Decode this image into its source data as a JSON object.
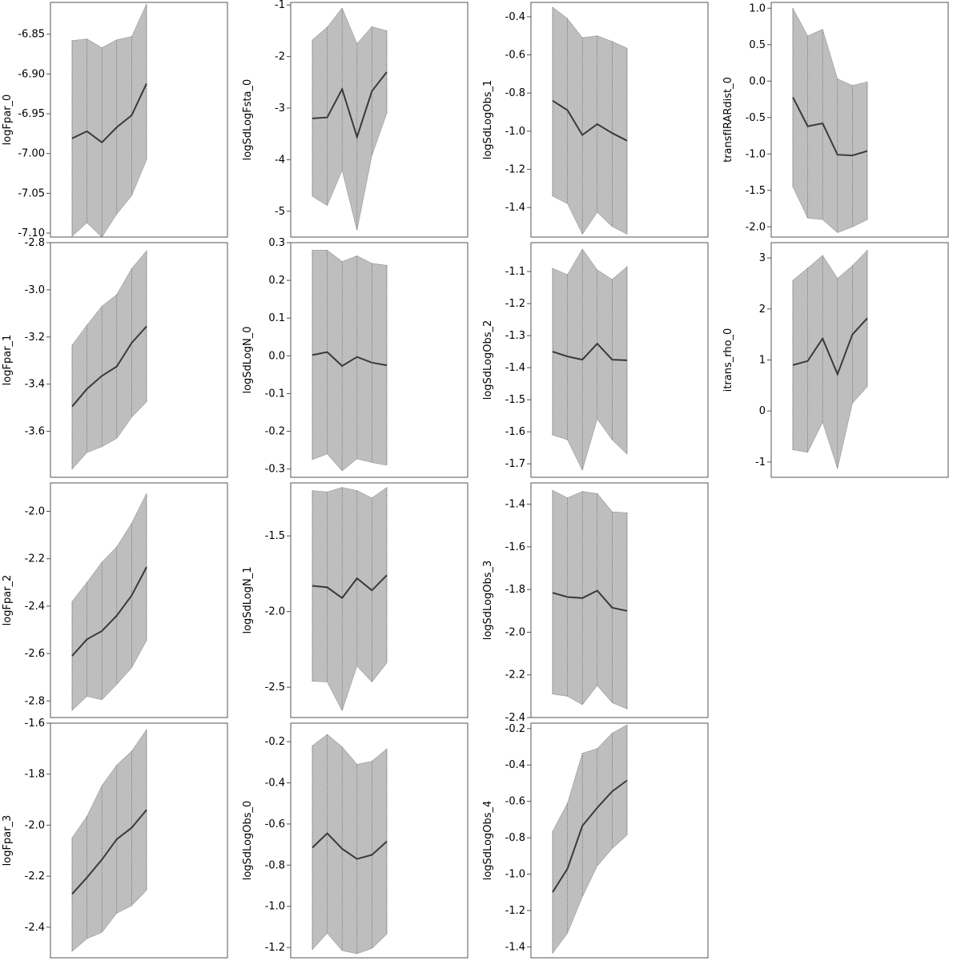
{
  "chart_data": [
    {
      "type": "area",
      "ylabel": "logFpar_0",
      "yticks": [
        -6.85,
        -6.9,
        -6.95,
        -7.0,
        -7.05,
        -7.1
      ],
      "ytick_labels": [
        "-6.85",
        "-6.90",
        "-6.95",
        "-7.00",
        "-7.05",
        "-7.10"
      ],
      "ylim": [
        -7.105,
        -6.81
      ],
      "x": [
        1,
        2,
        3,
        4,
        5,
        6
      ],
      "estimate": [
        -6.981,
        -6.972,
        -6.986,
        -6.967,
        -6.952,
        -6.912
      ],
      "upper": [
        -6.858,
        -6.856,
        -6.867,
        -6.857,
        -6.853,
        -6.812
      ],
      "lower": [
        -7.104,
        -7.087,
        -7.105,
        -7.076,
        -7.053,
        -7.008
      ]
    },
    {
      "type": "area",
      "ylabel": "logSdLogFsta_0",
      "yticks": [
        -1,
        -2,
        -3,
        -4,
        -5
      ],
      "ytick_labels": [
        "-1",
        "-2",
        "-3",
        "-4",
        "-5"
      ],
      "ylim": [
        -5.5,
        -0.95
      ],
      "x": [
        1,
        2,
        3,
        4,
        5,
        6
      ],
      "estimate": [
        -3.2,
        -3.18,
        -2.63,
        -3.56,
        -2.67,
        -2.3
      ],
      "upper": [
        -1.68,
        -1.43,
        -1.06,
        -1.75,
        -1.42,
        -1.5
      ],
      "lower": [
        -4.71,
        -4.89,
        -4.21,
        -5.37,
        -3.92,
        -3.1
      ]
    },
    {
      "type": "area",
      "ylabel": "logSdLogObs_1",
      "yticks": [
        -0.4,
        -0.6,
        -0.8,
        -1.0,
        -1.2,
        -1.4
      ],
      "ytick_labels": [
        "-0.4",
        "-0.6",
        "-0.8",
        "-1.0",
        "-1.2",
        "-1.4"
      ],
      "ylim": [
        -1.555,
        -0.325
      ],
      "x": [
        1,
        2,
        3,
        4,
        5,
        6
      ],
      "estimate": [
        -0.84,
        -0.89,
        -1.02,
        -0.963,
        -1.01,
        -1.05
      ],
      "upper": [
        -0.35,
        -0.41,
        -0.51,
        -0.5,
        -0.53,
        -0.565
      ],
      "lower": [
        -1.34,
        -1.38,
        -1.54,
        -1.425,
        -1.5,
        -1.54
      ]
    },
    {
      "type": "area",
      "ylabel": "transfIRARdist_0",
      "yticks": [
        1.0,
        0.5,
        0.0,
        -0.5,
        -1.0,
        -1.5,
        -2.0
      ],
      "ytick_labels": [
        "1.0",
        "0.5",
        "0.0",
        "-0.5",
        "-1.0",
        "-1.5",
        "-2.0"
      ],
      "ylim": [
        -2.14,
        1.08
      ],
      "x": [
        1,
        2,
        3,
        4,
        5,
        6
      ],
      "estimate": [
        -0.22,
        -0.62,
        -0.58,
        -1.01,
        -1.02,
        -0.96
      ],
      "upper": [
        1.0,
        0.62,
        0.71,
        0.03,
        -0.06,
        -0.01
      ],
      "lower": [
        -1.45,
        -1.88,
        -1.9,
        -2.08,
        -2.0,
        -1.9
      ]
    },
    {
      "type": "area",
      "ylabel": "logFpar_1",
      "yticks": [
        -2.8,
        -3.0,
        -3.2,
        -3.4,
        -3.6
      ],
      "ytick_labels": [
        "-2.8",
        "-3.0",
        "-3.2",
        "-3.4",
        "-3.6"
      ],
      "ylim": [
        -3.795,
        -2.8
      ],
      "x": [
        1,
        2,
        3,
        4,
        5,
        6
      ],
      "estimate": [
        -3.495,
        -3.42,
        -3.365,
        -3.325,
        -3.225,
        -3.155
      ],
      "upper": [
        -3.235,
        -3.15,
        -3.07,
        -3.02,
        -2.91,
        -2.835
      ],
      "lower": [
        -3.76,
        -3.69,
        -3.665,
        -3.63,
        -3.54,
        -3.475
      ]
    },
    {
      "type": "area",
      "ylabel": "logSdLogN_0",
      "yticks": [
        0.3,
        0.2,
        0.1,
        0.0,
        -0.1,
        -0.2,
        -0.3
      ],
      "ytick_labels": [
        "0.3",
        "0.2",
        "0.1",
        "0.0",
        "-0.1",
        "-0.2",
        "-0.3"
      ],
      "ylim": [
        -0.322,
        0.3
      ],
      "x": [
        1,
        2,
        3,
        4,
        5,
        6
      ],
      "estimate": [
        0.002,
        0.01,
        -0.027,
        -0.003,
        -0.018,
        -0.025
      ],
      "upper": [
        0.28,
        0.28,
        0.25,
        0.265,
        0.245,
        0.24
      ],
      "lower": [
        -0.275,
        -0.26,
        -0.305,
        -0.273,
        -0.283,
        -0.29
      ]
    },
    {
      "type": "area",
      "ylabel": "logSdLogObs_2",
      "yticks": [
        -1.1,
        -1.2,
        -1.3,
        -1.4,
        -1.5,
        -1.6,
        -1.7
      ],
      "ytick_labels": [
        "-1.1",
        "-1.2",
        "-1.3",
        "-1.4",
        "-1.5",
        "-1.6",
        "-1.7"
      ],
      "ylim": [
        -1.742,
        -1.01
      ],
      "x": [
        1,
        2,
        3,
        4,
        5,
        6
      ],
      "estimate": [
        -1.35,
        -1.365,
        -1.375,
        -1.325,
        -1.375,
        -1.377
      ],
      "upper": [
        -1.09,
        -1.11,
        -1.03,
        -1.095,
        -1.125,
        -1.085
      ],
      "lower": [
        -1.61,
        -1.625,
        -1.72,
        -1.56,
        -1.625,
        -1.67
      ]
    },
    {
      "type": "area",
      "ylabel": "itrans_rho_0",
      "yticks": [
        3,
        2,
        1,
        0,
        -1
      ],
      "ytick_labels": [
        "3",
        "2",
        "1",
        "0",
        "-1"
      ],
      "ylim": [
        -1.3,
        3.3
      ],
      "x": [
        1,
        2,
        3,
        4,
        5,
        6
      ],
      "estimate": [
        0.9,
        0.98,
        1.42,
        0.72,
        1.5,
        1.82
      ],
      "upper": [
        2.56,
        2.8,
        3.05,
        2.6,
        2.85,
        3.15
      ],
      "lower": [
        -0.76,
        -0.81,
        -0.22,
        -1.13,
        0.15,
        0.48
      ]
    },
    {
      "type": "area",
      "ylabel": "logFpar_2",
      "yticks": [
        -2.0,
        -2.2,
        -2.4,
        -2.6,
        -2.8
      ],
      "ytick_labels": [
        "-2.0",
        "-2.2",
        "-2.4",
        "-2.6",
        "-2.8"
      ],
      "ylim": [
        -2.87,
        -1.88
      ],
      "x": [
        1,
        2,
        3,
        4,
        5,
        6
      ],
      "estimate": [
        -2.61,
        -2.54,
        -2.505,
        -2.44,
        -2.355,
        -2.235
      ],
      "upper": [
        -2.38,
        -2.3,
        -2.215,
        -2.15,
        -2.05,
        -1.925
      ],
      "lower": [
        -2.84,
        -2.78,
        -2.795,
        -2.73,
        -2.66,
        -2.545
      ]
    },
    {
      "type": "area",
      "ylabel": "logSdLogN_1",
      "yticks": [
        -1.5,
        -2.0,
        -2.5
      ],
      "ytick_labels": [
        "-1.5",
        "-2.0",
        "-2.5"
      ],
      "ylim": [
        -2.7,
        -1.15
      ],
      "x": [
        1,
        2,
        3,
        4,
        5,
        6
      ],
      "estimate": [
        -1.83,
        -1.84,
        -1.91,
        -1.78,
        -1.86,
        -1.76
      ],
      "upper": [
        -1.2,
        -1.21,
        -1.18,
        -1.2,
        -1.25,
        -1.18
      ],
      "lower": [
        -2.46,
        -2.465,
        -2.655,
        -2.36,
        -2.465,
        -2.34
      ]
    },
    {
      "type": "area",
      "ylabel": "logSdLogObs_3",
      "yticks": [
        -1.4,
        -1.6,
        -1.8,
        -2.0,
        -2.2,
        -2.4
      ],
      "ytick_labels": [
        "-1.4",
        "-1.6",
        "-1.8",
        "-2.0",
        "-2.2",
        "-2.4"
      ],
      "ylim": [
        -2.4,
        -1.3
      ],
      "x": [
        1,
        2,
        3,
        4,
        5,
        6
      ],
      "estimate": [
        -1.815,
        -1.835,
        -1.84,
        -1.805,
        -1.885,
        -1.9
      ],
      "upper": [
        -1.335,
        -1.37,
        -1.34,
        -1.35,
        -1.435,
        -1.44
      ],
      "lower": [
        -2.29,
        -2.3,
        -2.34,
        -2.25,
        -2.33,
        -2.36
      ]
    },
    {
      "type": "area",
      "ylabel": "logFpar_3",
      "yticks": [
        -1.6,
        -1.8,
        -2.0,
        -2.2,
        -2.4
      ],
      "ytick_labels": [
        "-1.6",
        "-1.8",
        "-2.0",
        "-2.2",
        "-2.4"
      ],
      "ylim": [
        -2.52,
        -1.6
      ],
      "x": [
        1,
        2,
        3,
        4,
        5,
        6
      ],
      "estimate": [
        -2.27,
        -2.205,
        -2.135,
        -2.055,
        -2.01,
        -1.94
      ],
      "upper": [
        -2.05,
        -1.965,
        -1.845,
        -1.765,
        -1.71,
        -1.625
      ],
      "lower": [
        -2.495,
        -2.445,
        -2.42,
        -2.345,
        -2.315,
        -2.255
      ]
    },
    {
      "type": "area",
      "ylabel": "logSdLogObs_0",
      "yticks": [
        -0.2,
        -0.4,
        -0.6,
        -0.8,
        -1.0,
        -1.2
      ],
      "ytick_labels": [
        "-0.2",
        "-0.4",
        "-0.6",
        "-0.8",
        "-1.0",
        "-1.2"
      ],
      "ylim": [
        -1.25,
        -0.11
      ],
      "x": [
        1,
        2,
        3,
        4,
        5,
        6
      ],
      "estimate": [
        -0.715,
        -0.645,
        -0.72,
        -0.77,
        -0.75,
        -0.685
      ],
      "upper": [
        -0.22,
        -0.165,
        -0.225,
        -0.31,
        -0.295,
        -0.235
      ],
      "lower": [
        -1.21,
        -1.13,
        -1.215,
        -1.23,
        -1.205,
        -1.135
      ]
    },
    {
      "type": "area",
      "ylabel": "logSdLogObs_4",
      "yticks": [
        -0.2,
        -0.4,
        -0.6,
        -0.8,
        -1.0,
        -1.2,
        -1.4
      ],
      "ytick_labels": [
        "-0.2",
        "-0.4",
        "-0.6",
        "-0.8",
        "-1.0",
        "-1.2",
        "-1.4"
      ],
      "ylim": [
        -1.46,
        -0.17
      ],
      "x": [
        1,
        2,
        3,
        4,
        5,
        6
      ],
      "estimate": [
        -1.1,
        -0.97,
        -0.735,
        -0.635,
        -0.545,
        -0.485
      ],
      "upper": [
        -0.765,
        -0.61,
        -0.335,
        -0.31,
        -0.225,
        -0.18
      ],
      "lower": [
        -1.435,
        -1.325,
        -1.125,
        -0.955,
        -0.86,
        -0.785
      ]
    }
  ],
  "colors": {
    "band": "#bebebe",
    "band_edge": "#999999",
    "line": "#3a3a3a",
    "frame": "#555555",
    "grid_dotted": "#555555"
  }
}
